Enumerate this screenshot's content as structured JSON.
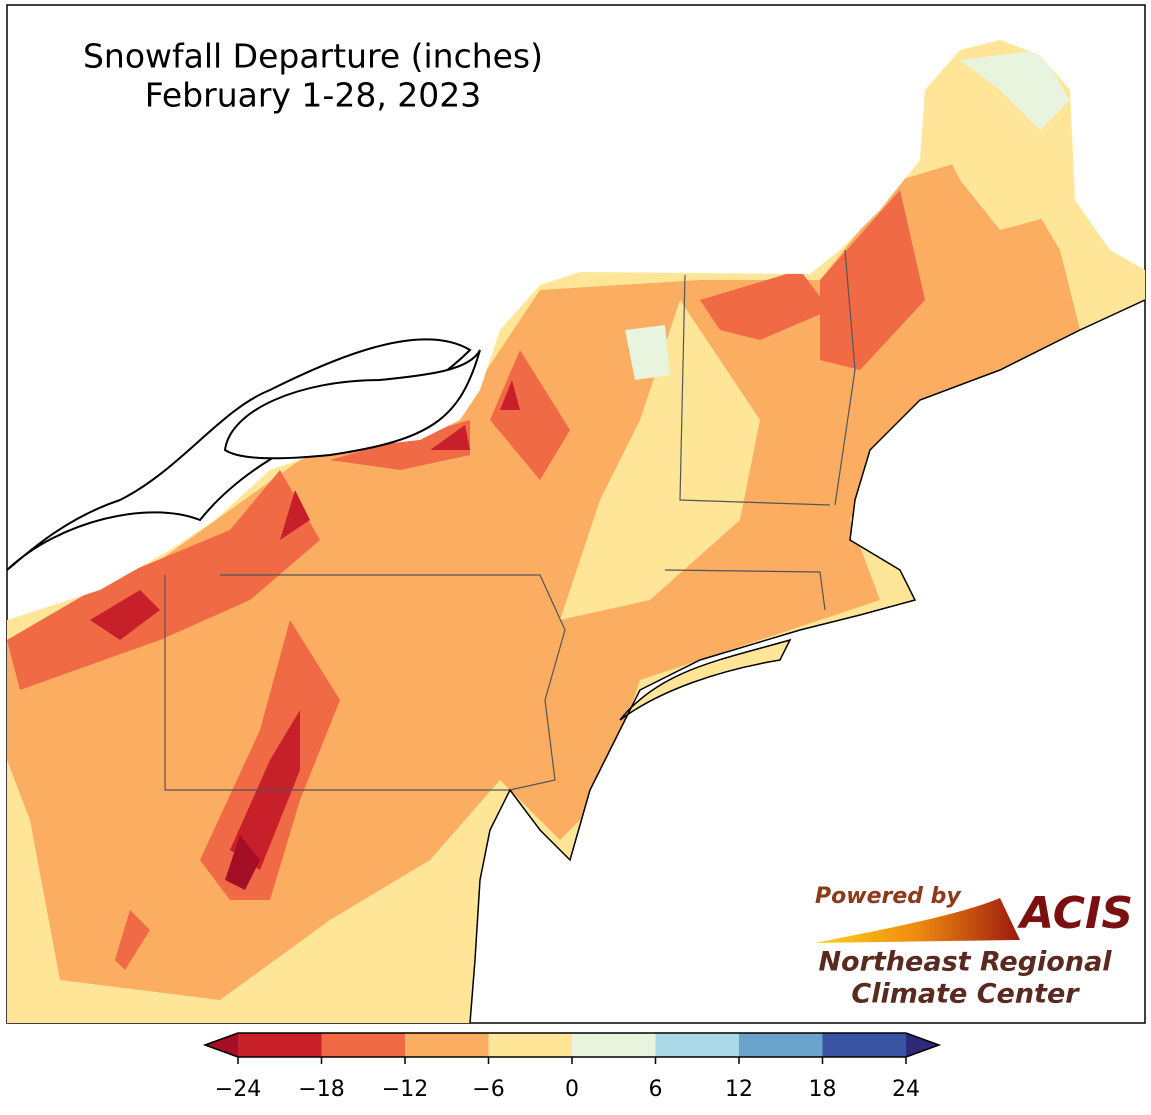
{
  "title": "Snowfall Departure (inches)",
  "subtitle": "February 1-28, 2023",
  "colorbar": {
    "ticks": [
      {
        "value": -24,
        "label": "−24"
      },
      {
        "value": -18,
        "label": "−18"
      },
      {
        "value": -12,
        "label": "−12"
      },
      {
        "value": -6,
        "label": "−6"
      },
      0,
      6,
      12,
      18,
      24
    ],
    "colors": [
      "#c8202a",
      "#ef6a45",
      "#fbad62",
      "#fee597",
      "#e8f4de",
      "#acd9e7",
      "#6aa4cd",
      "#3a53a3"
    ],
    "under": "#a50f26",
    "over": "#2d2a7a"
  },
  "logo": {
    "powered_by": "Powered by",
    "brand": "ACIS",
    "org_line1": "Northeast Regional",
    "org_line2": "Climate Center"
  }
}
